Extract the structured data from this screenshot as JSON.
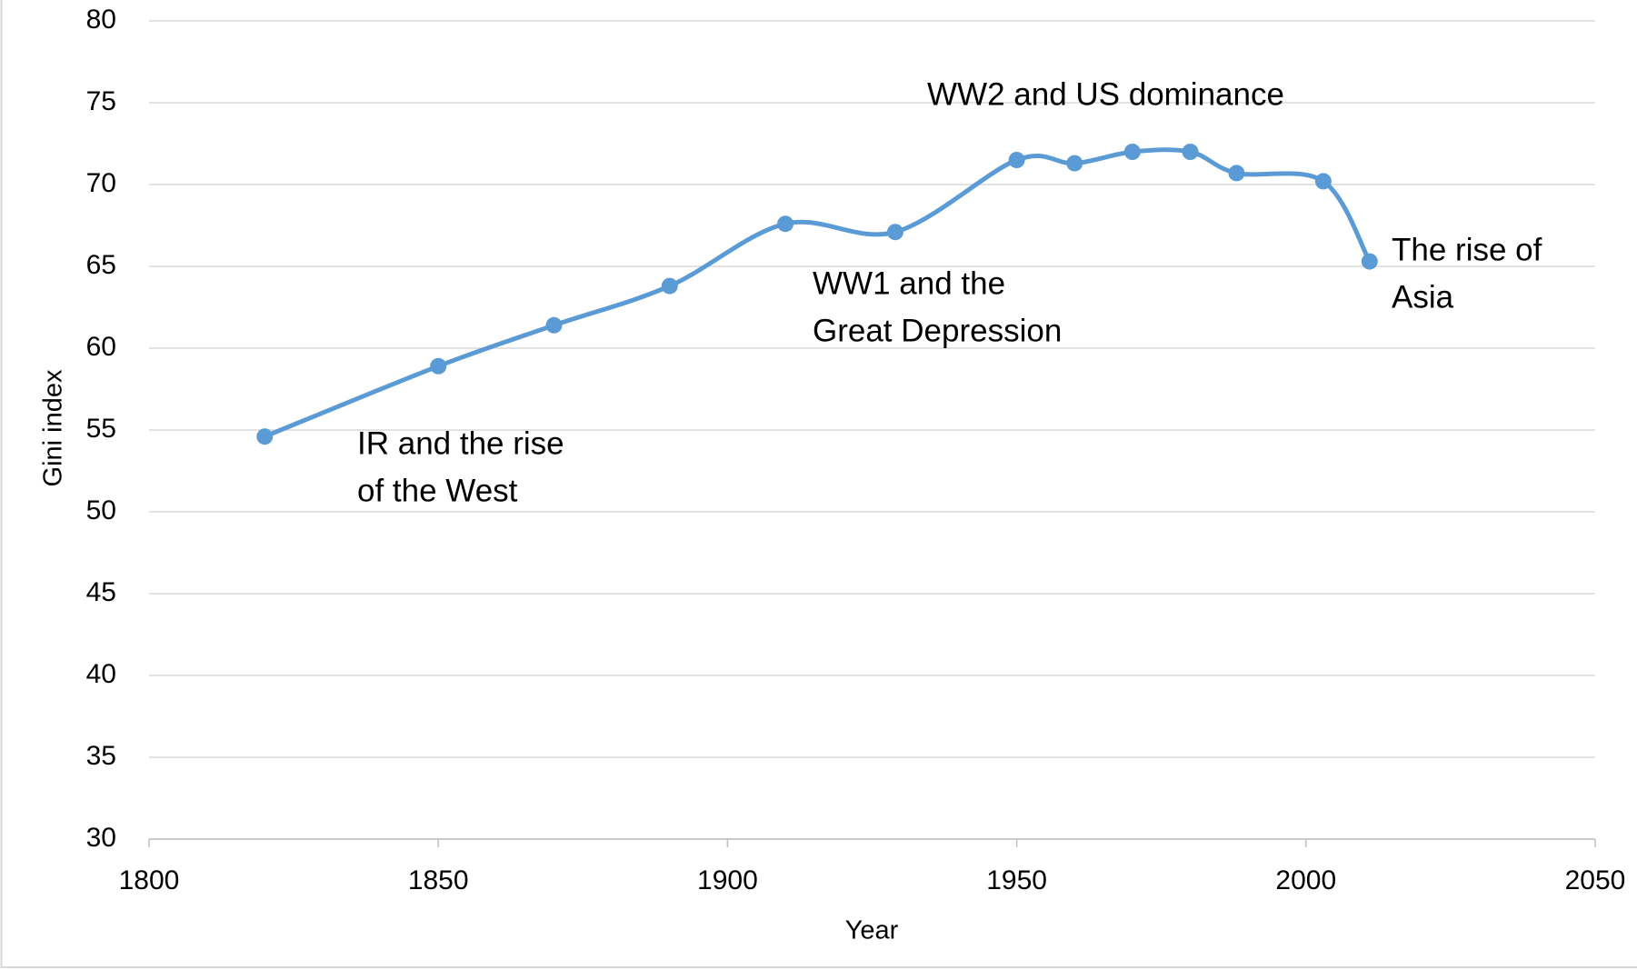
{
  "chart_data": {
    "type": "line",
    "x_label": "Year",
    "y_label": "Gini index",
    "series": [
      {
        "color": "#5b9bd5",
        "x": [
          1820,
          1850,
          1870,
          1890,
          1910,
          1929,
          1950,
          1960,
          1970,
          1980,
          1988,
          2003,
          2011
        ],
        "values": [
          54.6,
          58.9,
          61.4,
          63.8,
          67.6,
          67.1,
          71.5,
          71.3,
          72.0,
          72.0,
          70.7,
          70.2,
          65.3
        ]
      }
    ],
    "xlim": [
      1800,
      2050
    ],
    "xticks": [
      1800,
      1850,
      1900,
      1950,
      2000,
      2050
    ],
    "ylim": [
      30,
      80
    ],
    "yticks": [
      30,
      35,
      40,
      45,
      50,
      55,
      60,
      65,
      70,
      75,
      80
    ],
    "grid": true,
    "smooth": true,
    "annotations": [
      {
        "lines": [
          "IR and the rise",
          "of the West"
        ]
      },
      {
        "lines": [
          "WW1 and the",
          "Great Depression"
        ]
      },
      {
        "lines": [
          "WW2 and US dominance"
        ]
      },
      {
        "lines": [
          "The rise of",
          "Asia"
        ]
      }
    ]
  }
}
